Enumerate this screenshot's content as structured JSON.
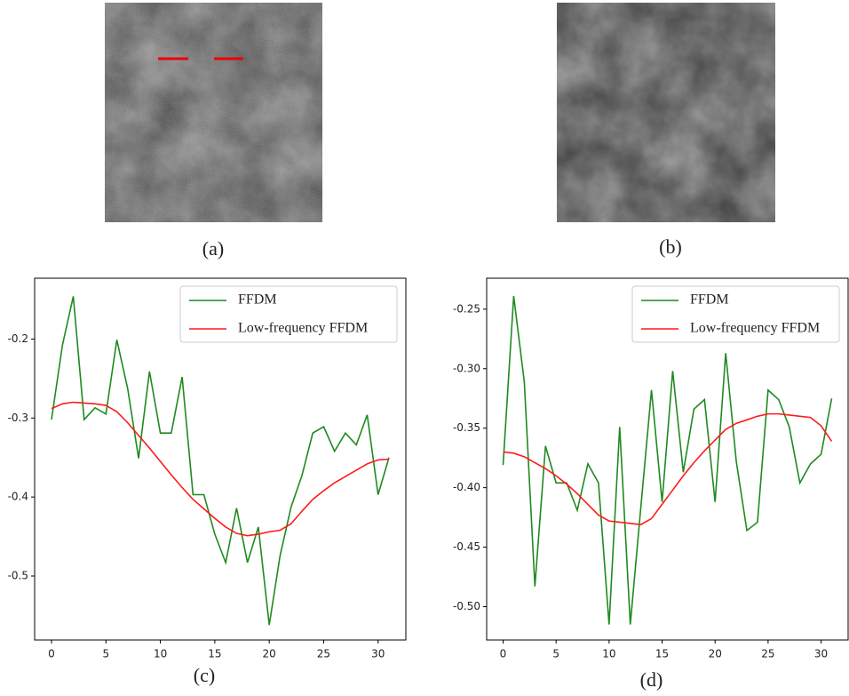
{
  "images": [
    {
      "caption": "(a)"
    },
    {
      "caption": "(b)"
    }
  ],
  "chart_data": [
    {
      "type": "line",
      "caption": "(c)",
      "legend": "upper right",
      "grid": false,
      "x": [
        0,
        1,
        2,
        3,
        4,
        5,
        6,
        7,
        8,
        9,
        10,
        11,
        12,
        13,
        14,
        15,
        16,
        17,
        18,
        19,
        20,
        21,
        22,
        23,
        24,
        25,
        26,
        27,
        28,
        29,
        30,
        31
      ],
      "xlim": [
        -1.55,
        32.55
      ],
      "xticks": [
        0,
        5,
        10,
        15,
        20,
        25,
        30
      ],
      "ylim": [
        -0.581,
        -0.123
      ],
      "yticks": [
        -0.5,
        -0.4,
        -0.3,
        -0.2
      ],
      "series": [
        {
          "name": "FFDM",
          "color": "#1f8a1f",
          "values": [
            -0.302,
            -0.208,
            -0.146,
            -0.302,
            -0.287,
            -0.295,
            -0.201,
            -0.263,
            -0.351,
            -0.241,
            -0.319,
            -0.319,
            -0.248,
            -0.397,
            -0.397,
            -0.447,
            -0.483,
            -0.414,
            -0.483,
            -0.438,
            -0.562,
            -0.474,
            -0.413,
            -0.373,
            -0.319,
            -0.311,
            -0.342,
            -0.319,
            -0.334,
            -0.296,
            -0.397,
            -0.35
          ]
        },
        {
          "name": "Low-frequency FFDM",
          "color": "#ff1a1a",
          "values": [
            -0.288,
            -0.282,
            -0.28,
            -0.281,
            -0.282,
            -0.284,
            -0.292,
            -0.306,
            -0.322,
            -0.338,
            -0.355,
            -0.372,
            -0.388,
            -0.403,
            -0.415,
            -0.427,
            -0.438,
            -0.446,
            -0.449,
            -0.447,
            -0.444,
            -0.442,
            -0.434,
            -0.418,
            -0.403,
            -0.392,
            -0.382,
            -0.374,
            -0.366,
            -0.358,
            -0.353,
            -0.352
          ]
        }
      ]
    },
    {
      "type": "line",
      "caption": "(d)",
      "legend": "upper right",
      "grid": false,
      "x": [
        0,
        1,
        2,
        3,
        4,
        5,
        6,
        7,
        8,
        9,
        10,
        11,
        12,
        13,
        14,
        15,
        16,
        17,
        18,
        19,
        20,
        21,
        22,
        23,
        24,
        25,
        26,
        27,
        28,
        29,
        30,
        31
      ],
      "xlim": [
        -1.55,
        32.55
      ],
      "xticks": [
        0,
        5,
        10,
        15,
        20,
        25,
        30
      ],
      "ylim": [
        -0.528,
        -0.224
      ],
      "yticks": [
        {
          "value": -0.5,
          "label": "-0.50"
        },
        -0.45,
        {
          "value": -0.4,
          "label": "-0.40"
        },
        -0.35,
        {
          "value": -0.3,
          "label": "-0.30"
        },
        -0.25
      ],
      "series": [
        {
          "name": "FFDM",
          "color": "#1f8a1f",
          "values": [
            -0.381,
            -0.239,
            -0.311,
            -0.483,
            -0.365,
            -0.396,
            -0.396,
            -0.419,
            -0.38,
            -0.396,
            -0.515,
            -0.349,
            -0.515,
            -0.416,
            -0.318,
            -0.412,
            -0.302,
            -0.387,
            -0.334,
            -0.326,
            -0.412,
            -0.287,
            -0.378,
            -0.436,
            -0.429,
            -0.318,
            -0.326,
            -0.349,
            -0.396,
            -0.38,
            -0.372,
            -0.325
          ]
        },
        {
          "name": "Low-frequency FFDM",
          "color": "#ff1a1a",
          "values": [
            -0.37,
            -0.371,
            -0.374,
            -0.379,
            -0.384,
            -0.39,
            -0.397,
            -0.405,
            -0.414,
            -0.423,
            -0.428,
            -0.429,
            -0.43,
            -0.431,
            -0.426,
            -0.414,
            -0.402,
            -0.39,
            -0.379,
            -0.369,
            -0.36,
            -0.351,
            -0.346,
            -0.343,
            -0.34,
            -0.338,
            -0.338,
            -0.339,
            -0.34,
            -0.341,
            -0.348,
            -0.361
          ]
        }
      ]
    }
  ]
}
